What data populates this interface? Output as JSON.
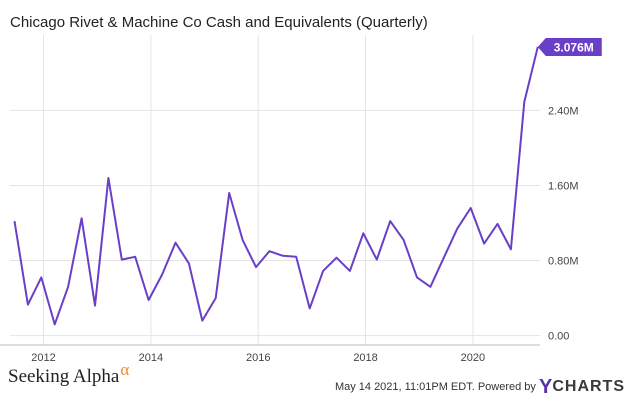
{
  "chart_data": {
    "type": "line",
    "title": "Chicago Rivet & Machine Co Cash and Equivalents (Quarterly)",
    "xlabel": "",
    "ylabel": "",
    "x_ticks": [
      "2012",
      "2014",
      "2016",
      "2018",
      "2020"
    ],
    "y_ticks": [
      "0.00",
      "0.80M",
      "1.60M",
      "2.40M"
    ],
    "ylim": [
      -0.1,
      3.15
    ],
    "grid": true,
    "series": [
      {
        "color": "#6a3fc8",
        "x": [
          "2011-06",
          "2011-09",
          "2011-12",
          "2012-03",
          "2012-06",
          "2012-09",
          "2012-12",
          "2013-03",
          "2013-06",
          "2013-09",
          "2013-12",
          "2014-03",
          "2014-06",
          "2014-09",
          "2014-12",
          "2015-03",
          "2015-06",
          "2015-09",
          "2015-12",
          "2016-03",
          "2016-06",
          "2016-09",
          "2016-12",
          "2017-03",
          "2017-06",
          "2017-09",
          "2017-12",
          "2018-03",
          "2018-06",
          "2018-09",
          "2018-12",
          "2019-03",
          "2019-06",
          "2019-09",
          "2019-12",
          "2020-03",
          "2020-06",
          "2020-09",
          "2020-12",
          "2021-03"
        ],
        "values": [
          1.22,
          0.33,
          0.62,
          0.12,
          0.52,
          1.25,
          0.32,
          1.68,
          0.81,
          0.84,
          0.38,
          0.65,
          0.99,
          0.77,
          0.16,
          0.4,
          1.52,
          1.02,
          0.73,
          0.9,
          0.85,
          0.84,
          0.29,
          0.69,
          0.83,
          0.69,
          1.09,
          0.81,
          1.22,
          1.02,
          0.62,
          0.52,
          0.83,
          1.14,
          1.36,
          0.98,
          1.19,
          0.92,
          2.49,
          3.076
        ]
      }
    ],
    "last_value_label": "3.076M"
  },
  "footer": {
    "brand": "Seeking Alpha",
    "brand_symbol": "α",
    "date": "May 14 2021, 11:01PM EDT.",
    "powered_by": "Powered by",
    "ycharts_y": "Y",
    "ycharts_text": "CHARTS"
  }
}
